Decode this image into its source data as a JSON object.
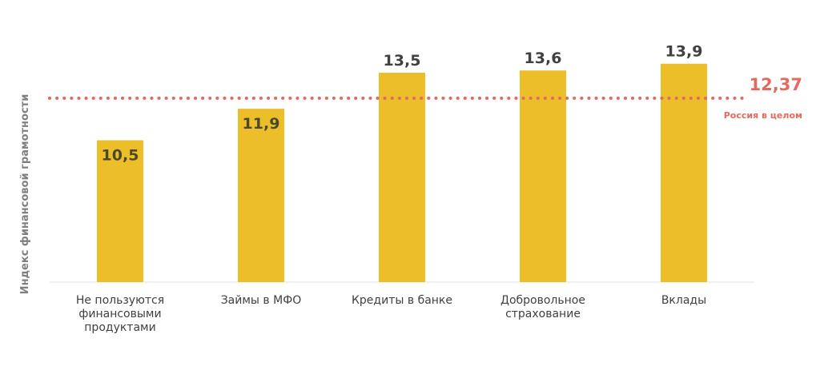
{
  "chart_data": {
    "type": "bar",
    "title": "",
    "xlabel": "",
    "ylabel": "Индекс финансовой грамотности",
    "categories": [
      [
        "Не пользуются",
        "финансовыми",
        "продуктами"
      ],
      [
        "Займы в МФО"
      ],
      [
        "Кредиты в банке"
      ],
      [
        "Добровольное",
        "страхование"
      ],
      [
        "Вклады"
      ]
    ],
    "values": [
      10.5,
      11.9,
      13.5,
      13.6,
      13.9
    ],
    "value_labels": [
      "10,5",
      "11,9",
      "13,5",
      "13,6",
      "13,9"
    ],
    "ylim": [
      4.2,
      14.6
    ],
    "grid": false,
    "legend": "none",
    "reference_line": {
      "value": 12.37,
      "value_label": "12,37",
      "label": "Россия в целом",
      "style": "dotted",
      "color": "#e06b5e"
    },
    "colors": {
      "bar": "#ecbf2a",
      "value_label_inside": "#4a4a2a",
      "value_label_above": "#404040",
      "axis": "#e0e0e0"
    }
  }
}
